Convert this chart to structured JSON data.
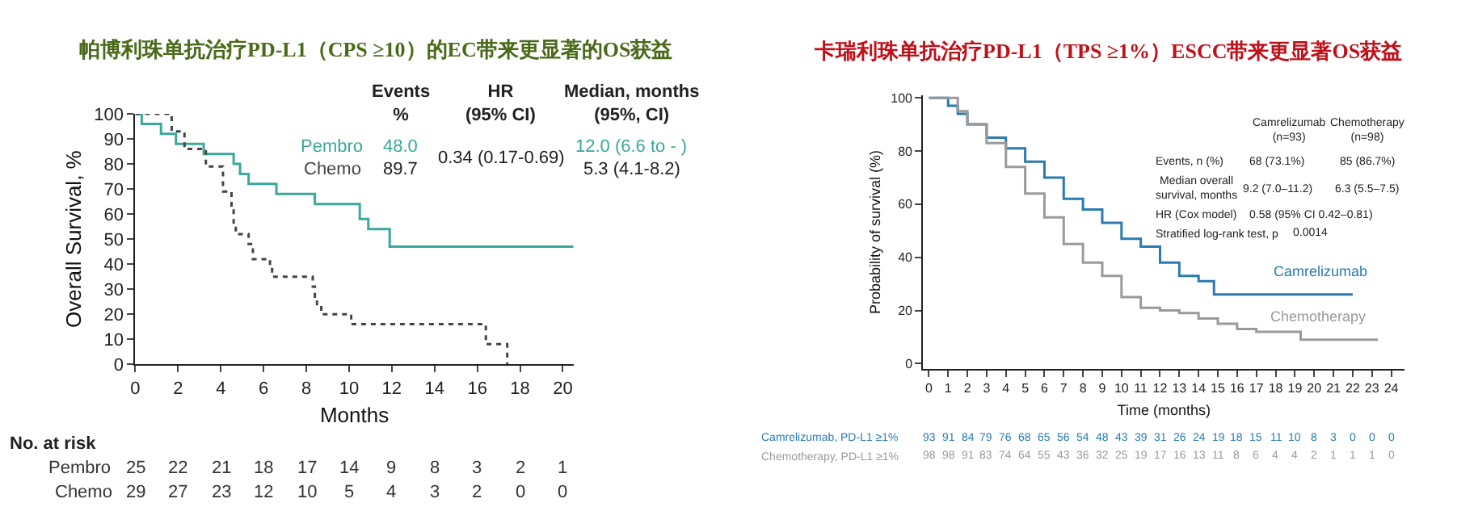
{
  "chart_data": [
    {
      "type": "step",
      "title": "帕博利珠单抗治疗PD-L1（CPS ≥10）的EC带来更显著的OS获益",
      "xlabel": "Months",
      "ylabel": "Overall Survival, %",
      "xlim": [
        0,
        20.5
      ],
      "ylim": [
        0,
        100
      ],
      "xticks": [
        0,
        2,
        4,
        6,
        8,
        10,
        12,
        14,
        16,
        18,
        20
      ],
      "yticks": [
        0,
        10,
        20,
        30,
        40,
        50,
        60,
        70,
        80,
        90,
        100
      ],
      "series": [
        {
          "name": "Pembro",
          "color": "#3aa89a",
          "line_style": "solid",
          "x": [
            0,
            0.3,
            1.2,
            1.9,
            3.2,
            4.6,
            4.9,
            5.3,
            6.6,
            8.4,
            10.5,
            10.9,
            11.9,
            20.5
          ],
          "values": [
            100,
            96,
            92,
            88,
            84,
            80,
            76,
            72,
            68,
            64,
            58,
            54,
            47,
            47
          ]
        },
        {
          "name": "Chemo",
          "color": "#444444",
          "line_style": "dotted",
          "x": [
            0,
            1.7,
            2.3,
            3.3,
            4.1,
            4.5,
            4.6,
            4.7,
            5.3,
            5.5,
            6.3,
            6.4,
            8.3,
            8.4,
            8.5,
            8.7,
            10.1,
            16.4,
            17.4
          ],
          "values": [
            100,
            93,
            86,
            79,
            69,
            62,
            55,
            52,
            48,
            42,
            38,
            35,
            31,
            27,
            24,
            20,
            16,
            8,
            0
          ]
        }
      ],
      "annotations": [
        "Events\n%",
        "HR\n(95% CI)",
        "Median, months\n(95%, CI)",
        "48.0",
        "89.7",
        "0.34 (0.17-0.69)",
        "12.0 (6.6 to - )",
        "5.3 (4.1-8.2)",
        "No. at risk",
        "Pembro 25 22 21 18 17 14 9 8 3 2 1",
        "Chemo 29 27 23 12 10 5 4 3 2 0 0"
      ]
    },
    {
      "type": "step",
      "title": "卡瑞利珠单抗治疗PD-L1（TPS ≥1%）ESCC带来更显著OS获益",
      "xlabel": "Time (months)",
      "ylabel": "Probability of survival (%)",
      "xlim": [
        -0.3,
        24.7
      ],
      "ylim": [
        -2,
        101
      ],
      "xticks": [
        0,
        1,
        2,
        3,
        4,
        5,
        6,
        7,
        8,
        9,
        10,
        11,
        12,
        13,
        14,
        15,
        16,
        17,
        18,
        19,
        20,
        21,
        22,
        23,
        24
      ],
      "yticks": [
        0,
        20,
        40,
        60,
        80,
        100
      ],
      "series": [
        {
          "name": "Camrelizumab",
          "color": "#2b7bb0",
          "line_style": "solid",
          "x": [
            0,
            0.8,
            1,
            1.5,
            2,
            3,
            4,
            5,
            6,
            7,
            8,
            9,
            10,
            11,
            12,
            13,
            14,
            14.8,
            22
          ],
          "values": [
            100,
            100,
            97,
            94,
            90,
            85,
            81,
            76,
            70,
            62,
            58,
            53,
            47,
            44,
            38,
            33,
            31,
            26,
            26
          ]
        },
        {
          "name": "Chemotherapy",
          "color": "#9a9a9a",
          "line_style": "solid",
          "x": [
            0,
            1,
            1.5,
            2,
            3,
            4,
            5,
            6,
            7,
            8,
            9,
            10,
            11,
            12,
            13,
            14,
            15,
            16,
            17,
            19.3,
            23.3
          ],
          "values": [
            100,
            100,
            95,
            90,
            83,
            74,
            64,
            55,
            45,
            38,
            33,
            25,
            21,
            20,
            19,
            17,
            15,
            13,
            12,
            9,
            9
          ]
        }
      ],
      "annotations": [
        "Camrelizumab\n(n=93)",
        "Chemotherapy\n(n=98)",
        "Events, n (%)",
        "68 (73.1%)",
        "85 (86.7%)",
        "Median overall\nsurvival, months",
        "9.2 (7.0–11.2)",
        "6.3 (5.5–7.5)",
        "HR (Cox model)",
        "0.58 (95% CI 0.42–0.81)",
        "Stratified log-rank test, p",
        "0.0014",
        "Camrelizumab, PD-L1 ≥1% 93 91 84 79 76 68 65 56 54 48 43 39 31 26 24 19 18 15 11 10 8 3 0 0 0",
        "Chemotherapy, PD-L1 ≥1% 98 98 91 83 74 64 55 43 36 32 25 19 17 16 13 11 8 6 4 4 2 1 1 1 0"
      ]
    }
  ]
}
